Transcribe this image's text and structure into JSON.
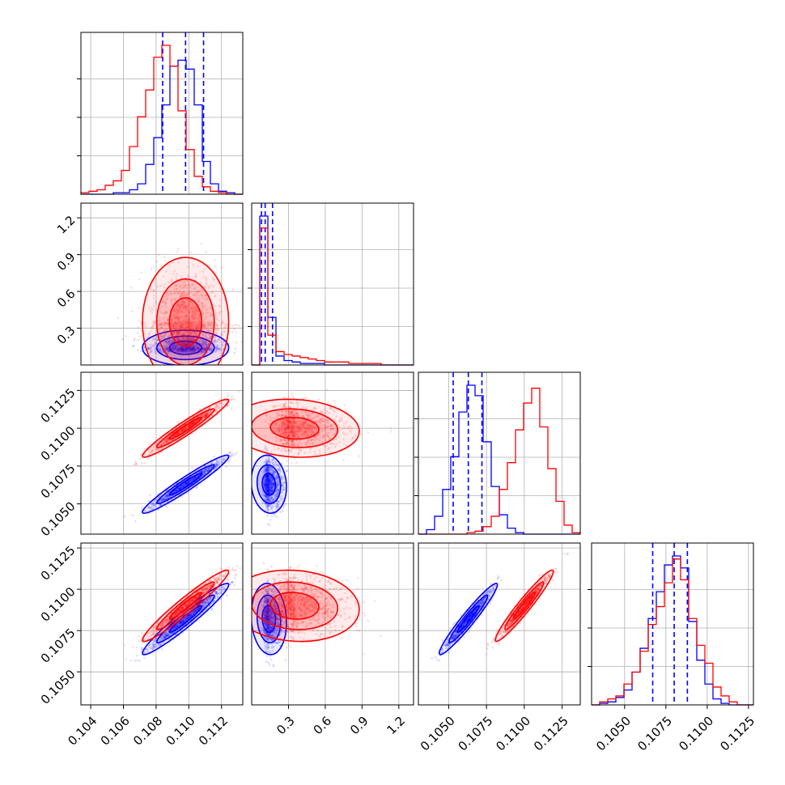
{
  "chart_data": {
    "type": "scatter",
    "kind": "corner-plot",
    "grid": true,
    "colors": {
      "series_a": "#0000ff",
      "series_b": "#ff0000",
      "grid": "#b0b0b0"
    },
    "parameters": [
      {
        "range": [
          0.1034,
          0.1133
        ],
        "ticks": [
          0.104,
          0.106,
          0.108,
          0.11,
          0.112
        ],
        "tick_labels": [
          "0.104",
          "0.106",
          "0.108",
          "0.110",
          "0.112"
        ]
      },
      {
        "range": [
          0.0,
          1.32
        ],
        "ticks": [
          0.3,
          0.6,
          0.9,
          1.2
        ],
        "tick_labels": [
          "0.3",
          "0.6",
          "0.9",
          "1.2"
        ]
      },
      {
        "range": [
          0.103,
          0.1137
        ],
        "ticks": [
          0.105,
          0.1075,
          0.11,
          0.1125
        ],
        "tick_labels": [
          "0.1050",
          "0.1075",
          "0.1100",
          "0.1125"
        ]
      },
      {
        "range": [
          0.103,
          0.1128
        ],
        "ticks": [
          0.105,
          0.1075,
          0.11,
          0.1125
        ],
        "tick_labels": [
          "0.1050",
          "0.1075",
          "0.1100",
          "0.1125"
        ]
      }
    ],
    "series": [
      {
        "color": "#0000ff",
        "mean": [
          0.1098,
          0.14,
          0.1063,
          0.1082
        ],
        "sd": [
          0.0011,
          0.06,
          0.0008,
          0.0009
        ],
        "quantile_lines": [
          [
            0.1084,
            0.1098,
            0.1109
          ],
          [
            0.08,
            0.11,
            0.17
          ],
          [
            0.1053,
            0.1063,
            0.1072
          ],
          [
            0.1067,
            0.108,
            0.1088
          ]
        ],
        "hist": [
          [
            0,
            0,
            0,
            0,
            0.01,
            0.01,
            0.03,
            0.07,
            0.2,
            0.38,
            0.6,
            0.86,
            0.9,
            0.84,
            0.6,
            0.22,
            0.07,
            0.02,
            0.01,
            0
          ],
          [
            0,
            1.0,
            0.32,
            0.06,
            0.03,
            0.02,
            0.01,
            0.01,
            0.01,
            0,
            0,
            0,
            0,
            0,
            0,
            0,
            0,
            0,
            0,
            0
          ],
          [
            0,
            0.03,
            0.12,
            0.3,
            0.52,
            0.82,
            1.0,
            0.93,
            0.62,
            0.32,
            0.13,
            0.04,
            0.01,
            0,
            0,
            0,
            0,
            0,
            0,
            0
          ],
          [
            0,
            0.01,
            0.02,
            0.05,
            0.1,
            0.22,
            0.38,
            0.58,
            0.76,
            0.94,
            1.0,
            0.92,
            0.56,
            0.3,
            0.14,
            0.04,
            0.01,
            0,
            0,
            0
          ]
        ]
      },
      {
        "color": "#ff0000",
        "mean": [
          0.1098,
          0.35,
          0.11,
          0.109
        ],
        "sd": [
          0.0011,
          0.22,
          0.0008,
          0.0009
        ],
        "quantile_lines": [],
        "hist": [
          [
            0.01,
            0.02,
            0.03,
            0.06,
            0.09,
            0.16,
            0.32,
            0.52,
            0.7,
            0.92,
            1.0,
            0.86,
            0.56,
            0.3,
            0.12,
            0.05,
            0.02,
            0.01,
            0,
            0
          ],
          [
            0,
            0.92,
            0.2,
            0.09,
            0.07,
            0.06,
            0.05,
            0.04,
            0.03,
            0.02,
            0.02,
            0.02,
            0.01,
            0.01,
            0.01,
            0.01,
            0,
            0,
            0,
            0
          ],
          [
            0,
            0,
            0,
            0,
            0,
            0,
            0.01,
            0.02,
            0.05,
            0.12,
            0.3,
            0.48,
            0.7,
            0.88,
            0.98,
            0.72,
            0.44,
            0.22,
            0.06,
            0.01
          ],
          [
            0,
            0.02,
            0.04,
            0.06,
            0.14,
            0.22,
            0.36,
            0.54,
            0.66,
            0.82,
            0.98,
            0.84,
            0.58,
            0.4,
            0.28,
            0.12,
            0.06,
            0.02,
            0,
            0
          ]
        ]
      }
    ],
    "correlations": {
      "0-2": 0.96,
      "0-3": 0.96,
      "2-3": 0.96,
      "0-1": 0.0,
      "1-2": -0.1,
      "1-3": -0.1
    }
  }
}
